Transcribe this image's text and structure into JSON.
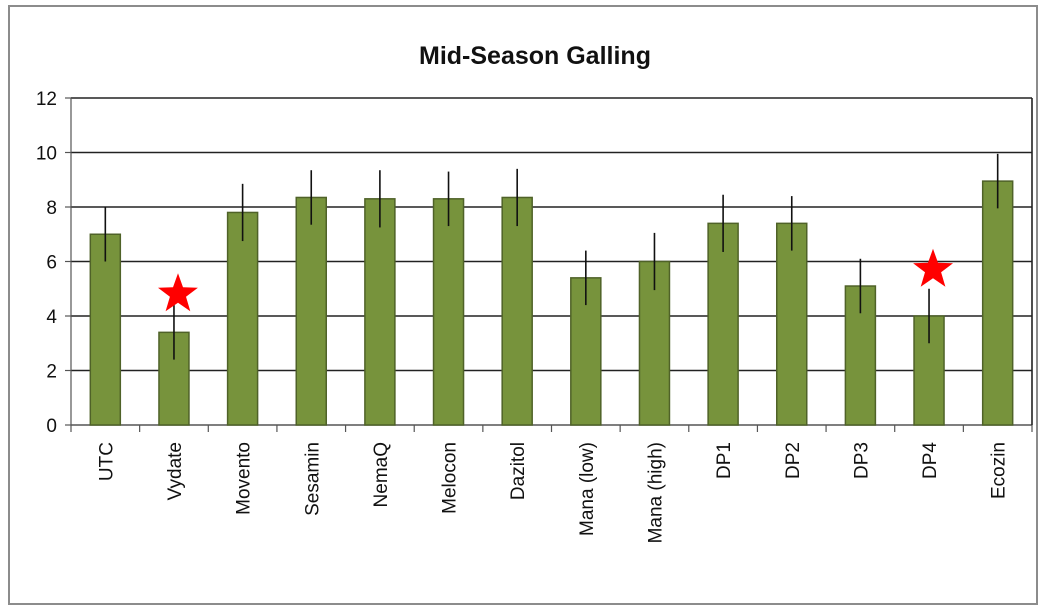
{
  "chart_data": {
    "type": "bar",
    "title": "Mid-Season Galling",
    "xlabel": "",
    "ylabel": "",
    "ylim": [
      0,
      12
    ],
    "yticks": [
      0,
      2,
      4,
      6,
      8,
      10,
      12
    ],
    "grid": true,
    "categories": [
      "UTC",
      "Vydate",
      "Movento",
      "Sesamin",
      "NemaQ",
      "Melocon",
      "Dazitol",
      "Mana (low)",
      "Mana (high)",
      "DP1",
      "DP2",
      "DP3",
      "DP4",
      "Ecozin"
    ],
    "values": [
      7.0,
      3.4,
      7.8,
      8.35,
      8.3,
      8.3,
      8.35,
      5.4,
      6.0,
      7.4,
      7.4,
      5.1,
      4.0,
      8.95
    ],
    "error": [
      1.0,
      1.0,
      1.05,
      1.0,
      1.05,
      1.0,
      1.05,
      1.0,
      1.05,
      1.05,
      1.0,
      1.0,
      1.0,
      1.0
    ],
    "bar_color": "#77933c",
    "bar_edge_color": "#4f6228",
    "annotations": [
      {
        "type": "star",
        "category": "Vydate",
        "y": 4.8,
        "color": "#ff0000"
      },
      {
        "type": "star",
        "category": "DP4",
        "y": 5.7,
        "color": "#ff0000"
      }
    ]
  }
}
